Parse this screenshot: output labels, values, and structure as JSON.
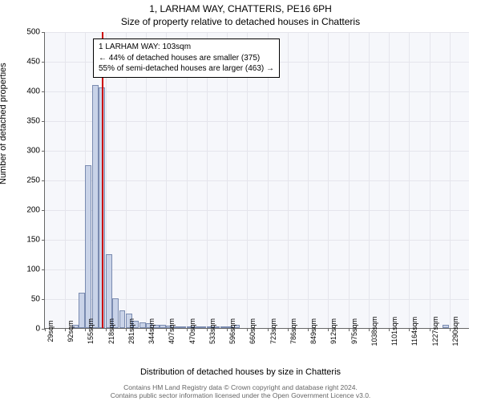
{
  "title": {
    "line1": "1, LARHAM WAY, CHATTERIS, PE16 6PH",
    "line2": "Size of property relative to detached houses in Chatteris"
  },
  "ylabel": "Number of detached properties",
  "xlabel": "Distribution of detached houses by size in Chatteris",
  "footer": {
    "line1": "Contains HM Land Registry data © Crown copyright and database right 2024.",
    "line2": "Contains public sector information licensed under the Open Government Licence v3.0."
  },
  "chart": {
    "type": "bar",
    "background_color": "#f6f7fb",
    "grid_color": "#e5e5ec",
    "axis_color": "#666666",
    "y": {
      "min": 0,
      "max": 500,
      "step": 50
    },
    "x_ticks": [
      "29sqm",
      "92sqm",
      "155sqm",
      "218sqm",
      "281sqm",
      "344sqm",
      "407sqm",
      "470sqm",
      "533sqm",
      "596sqm",
      "660sqm",
      "723sqm",
      "786sqm",
      "849sqm",
      "912sqm",
      "975sqm",
      "1038sqm",
      "1101sqm",
      "1164sqm",
      "1227sqm",
      "1290sqm"
    ],
    "bars_per_tick": 3,
    "bars": [
      0,
      0,
      0,
      0,
      5,
      60,
      275,
      410,
      405,
      125,
      50,
      30,
      25,
      12,
      10,
      8,
      6,
      5,
      4,
      3,
      3,
      3,
      2,
      2,
      2,
      2,
      2,
      2,
      5,
      0,
      0,
      0,
      0,
      0,
      0,
      0,
      0,
      0,
      0,
      0,
      0,
      0,
      0,
      0,
      0,
      0,
      0,
      0,
      0,
      0,
      0,
      0,
      0,
      0,
      0,
      0,
      0,
      0,
      0,
      5,
      0,
      0,
      0
    ],
    "bar_fill": "#c9d3e8",
    "bar_border": "#7a8bb0",
    "marker": {
      "sub_index": 8,
      "color": "#cc0000"
    }
  },
  "info_box": {
    "line1": "1 LARHAM WAY: 103sqm",
    "line2": "← 44% of detached houses are smaller (375)",
    "line3": "55% of semi-detached houses are larger (463) →"
  }
}
